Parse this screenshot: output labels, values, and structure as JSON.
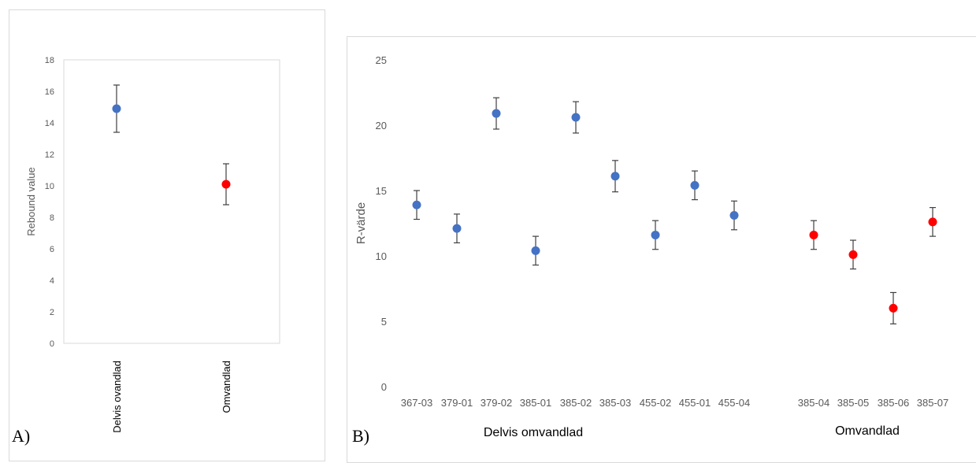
{
  "panels": {
    "a_letter": "A)",
    "b_letter": "B)"
  },
  "colors": {
    "blue": "#4472c4",
    "red": "#ff0000",
    "errorbar": "#404040",
    "axis": "#bfbfbf"
  },
  "chart_data": [
    {
      "type": "scatter",
      "title": "",
      "xlabel": "",
      "ylabel": "Rebound value",
      "ylim": [
        0,
        18
      ],
      "yticks": [
        0,
        2,
        4,
        6,
        8,
        10,
        12,
        14,
        16,
        18
      ],
      "grid": false,
      "categories": [
        "Delvis ovandlad",
        "Omvandlad"
      ],
      "values": [
        14.9,
        10.1
      ],
      "error": [
        1.5,
        1.3
      ],
      "point_colors": [
        "#4472c4",
        "#ff0000"
      ]
    },
    {
      "type": "scatter",
      "title": "",
      "xlabel": "",
      "ylabel": "R-värde",
      "ylim": [
        0,
        25
      ],
      "yticks": [
        0,
        5,
        10,
        15,
        20,
        25
      ],
      "grid": false,
      "categories": [
        "367-03",
        "379-01",
        "379-02",
        "385-01",
        "385-02",
        "385-03",
        "455-02",
        "455-01",
        "455-04",
        "385-04",
        "385-05",
        "385-06",
        "385-07"
      ],
      "values": [
        13.9,
        12.1,
        20.9,
        10.4,
        20.6,
        16.1,
        11.6,
        15.4,
        13.1,
        11.6,
        10.1,
        6.0,
        12.6
      ],
      "error": [
        1.1,
        1.1,
        1.2,
        1.1,
        1.2,
        1.2,
        1.1,
        1.1,
        1.1,
        1.1,
        1.1,
        1.2,
        1.1
      ],
      "point_colors": [
        "#4472c4",
        "#4472c4",
        "#4472c4",
        "#4472c4",
        "#4472c4",
        "#4472c4",
        "#4472c4",
        "#4472c4",
        "#4472c4",
        "#ff0000",
        "#ff0000",
        "#ff0000",
        "#ff0000"
      ],
      "group_labels": [
        "Delvis omvandlad",
        "Omvandlad"
      ]
    }
  ]
}
